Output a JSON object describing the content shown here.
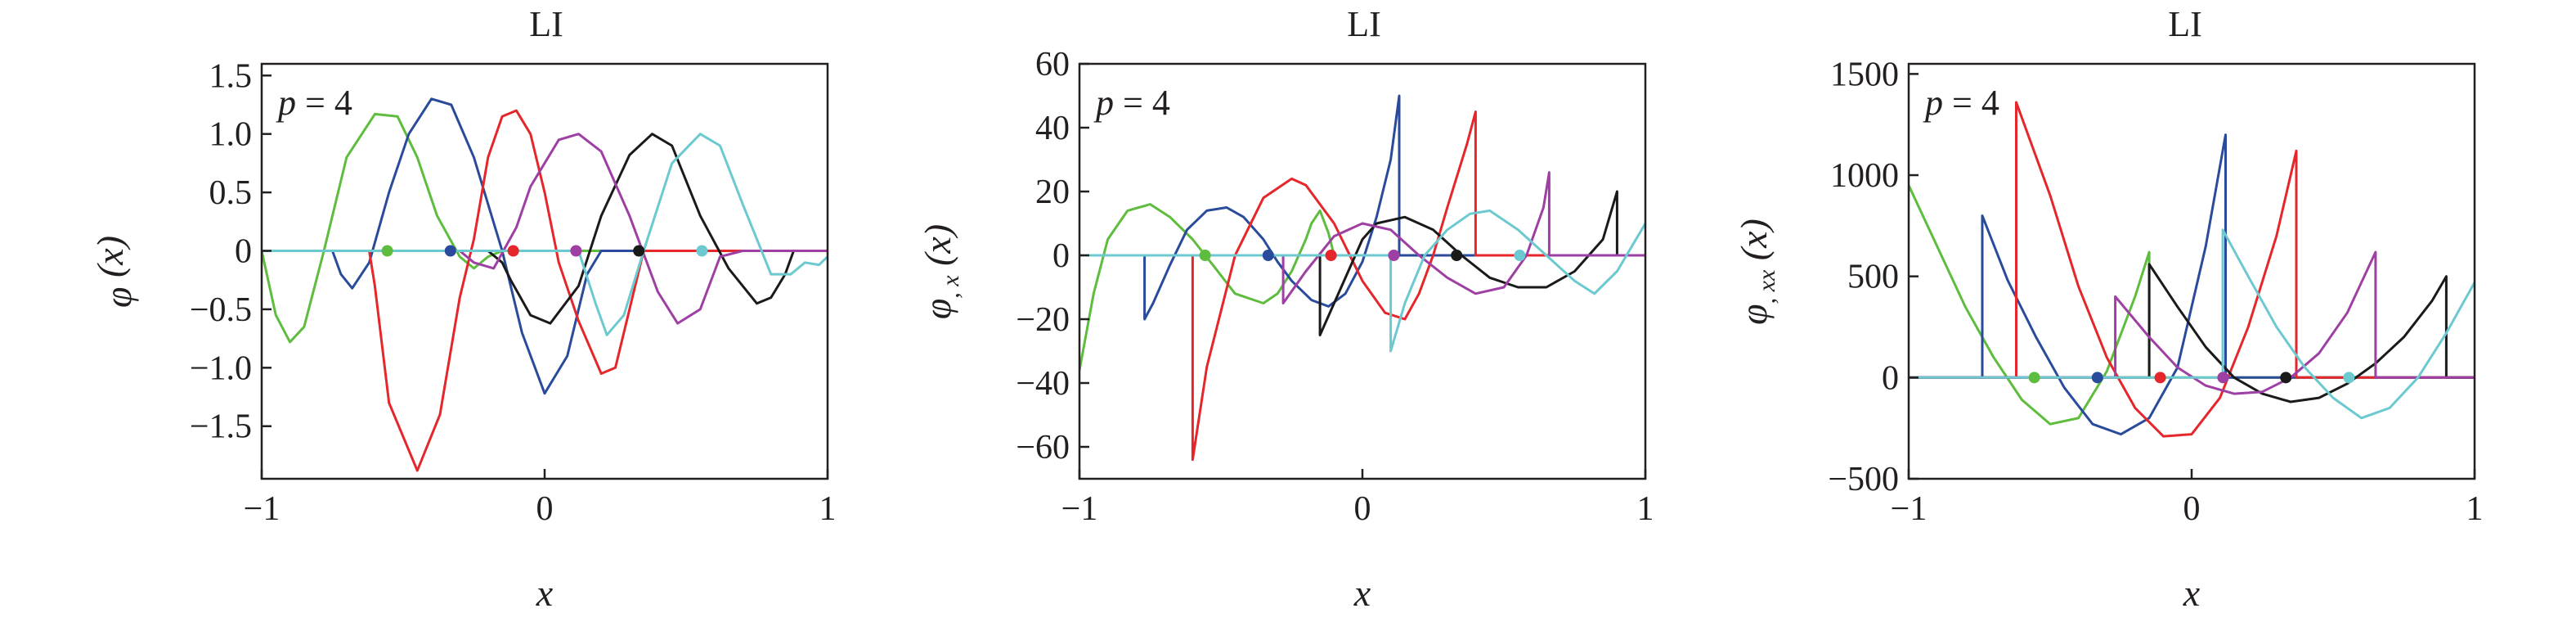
{
  "colors": {
    "green": "#5ebd3e",
    "blue": "#2a4b9b",
    "red": "#e5262b",
    "purple": "#9e3fa3",
    "black": "#1a1a1a",
    "cyan": "#6cc9cf"
  },
  "chart_data": [
    {
      "type": "line",
      "title": "LI",
      "annotation": {
        "p": "p",
        "eq": " = 4"
      },
      "xlabel": "x",
      "ylabel": {
        "sym": "φ",
        "sub": "",
        "arg": " (x)"
      },
      "xlim": [
        -1,
        1
      ],
      "ylim": [
        -1.95,
        1.6
      ],
      "xticks": [
        -1,
        0,
        1
      ],
      "xtick_labels": [
        "−1",
        "0",
        "1"
      ],
      "yticks": [
        -1.5,
        -1.0,
        -0.5,
        0,
        0.5,
        1.0,
        1.5
      ],
      "ytick_labels": [
        "−1.5",
        "−1.0",
        "−0.5",
        "0",
        "0.5",
        "1.0",
        "1.5"
      ],
      "nodes": [
        -0.556,
        -0.333,
        -0.111,
        0.111,
        0.333,
        0.556
      ],
      "series": [
        {
          "color": "green",
          "x": [
            -1,
            -0.95,
            -0.9,
            -0.85,
            -0.78,
            -0.7,
            -0.6,
            -0.52,
            -0.45,
            -0.38,
            -0.3,
            -0.25,
            -0.2,
            -0.15,
            -0.1,
            1
          ],
          "y": [
            0,
            -0.55,
            -0.78,
            -0.65,
            0,
            0.8,
            1.17,
            1.15,
            0.8,
            0.3,
            -0.05,
            -0.15,
            -0.05,
            0,
            0,
            0
          ]
        },
        {
          "color": "blue",
          "x": [
            -1,
            -0.75,
            -0.72,
            -0.68,
            -0.62,
            -0.55,
            -0.48,
            -0.4,
            -0.33,
            -0.25,
            -0.15,
            -0.08,
            0,
            0.08,
            0.15,
            0.2,
            1
          ],
          "y": [
            0,
            0,
            -0.2,
            -0.32,
            -0.1,
            0.5,
            1.0,
            1.3,
            1.25,
            0.8,
            0.0,
            -0.7,
            -1.22,
            -0.9,
            -0.2,
            0,
            0
          ]
        },
        {
          "color": "red",
          "x": [
            -1,
            -0.62,
            -0.6,
            -0.55,
            -0.45,
            -0.37,
            -0.3,
            -0.25,
            -0.2,
            -0.15,
            -0.1,
            -0.05,
            0,
            0.05,
            0.12,
            0.2,
            0.25,
            0.3,
            0.35,
            1
          ],
          "y": [
            0,
            0,
            -0.3,
            -1.3,
            -1.88,
            -1.4,
            -0.4,
            0.1,
            0.8,
            1.15,
            1.2,
            1.0,
            0.5,
            -0.1,
            -0.6,
            -1.05,
            -1.0,
            -0.5,
            0,
            0
          ]
        },
        {
          "color": "black",
          "x": [
            -1,
            -0.2,
            -0.15,
            -0.12,
            -0.05,
            0.02,
            0.12,
            0.2,
            0.3,
            0.38,
            0.45,
            0.55,
            0.65,
            0.75,
            0.8,
            0.85,
            0.88,
            1
          ],
          "y": [
            0,
            0,
            -0.1,
            -0.25,
            -0.55,
            -0.62,
            -0.3,
            0.3,
            0.82,
            1.0,
            0.9,
            0.3,
            -0.15,
            -0.45,
            -0.4,
            -0.2,
            0,
            0
          ]
        },
        {
          "color": "purple",
          "x": [
            -1,
            -0.3,
            -0.25,
            -0.18,
            -0.1,
            -0.05,
            0.05,
            0.12,
            0.2,
            0.3,
            0.4,
            0.47,
            0.55,
            0.62,
            0.7,
            1
          ],
          "y": [
            0,
            0,
            -0.1,
            -0.15,
            0.2,
            0.55,
            0.95,
            1.0,
            0.85,
            0.3,
            -0.35,
            -0.62,
            -0.5,
            -0.05,
            0,
            0
          ]
        },
        {
          "color": "cyan",
          "x": [
            -1,
            0.12,
            0.18,
            0.22,
            0.28,
            0.35,
            0.45,
            0.55,
            0.62,
            0.7,
            0.8,
            0.87,
            0.92,
            0.97,
            1
          ],
          "y": [
            0,
            0,
            -0.45,
            -0.72,
            -0.55,
            0.0,
            0.75,
            1.0,
            0.9,
            0.4,
            -0.2,
            -0.2,
            -0.1,
            -0.12,
            -0.05
          ]
        }
      ]
    },
    {
      "type": "line",
      "title": "LI",
      "annotation": {
        "p": "p",
        "eq": " = 4"
      },
      "xlabel": "x",
      "ylabel": {
        "sym": "φ",
        "sub": ", x",
        "arg": " (x)"
      },
      "xlim": [
        -1,
        1
      ],
      "ylim": [
        -70,
        60
      ],
      "xticks": [
        -1,
        0,
        1
      ],
      "xtick_labels": [
        "−1",
        "0",
        "1"
      ],
      "yticks": [
        -60,
        -40,
        -20,
        0,
        20,
        40,
        60
      ],
      "ytick_labels": [
        "−60",
        "−40",
        "−20",
        "0",
        "20",
        "40",
        "60"
      ],
      "nodes": [
        -0.556,
        -0.333,
        -0.111,
        0.111,
        0.333,
        0.556
      ],
      "series": [
        {
          "color": "green",
          "x": [
            -1,
            -0.95,
            -0.9,
            -0.83,
            -0.75,
            -0.68,
            -0.6,
            -0.52,
            -0.45,
            -0.35,
            -0.3,
            -0.25,
            -0.2,
            -0.18,
            -0.15,
            -0.12,
            -0.1,
            1
          ],
          "y": [
            -36,
            -12,
            5,
            14,
            16,
            12,
            5,
            -4,
            -12,
            -15,
            -12,
            -5,
            5,
            10,
            14,
            7,
            0,
            0
          ]
        },
        {
          "color": "blue",
          "x": [
            -1,
            -0.77,
            -0.77,
            -0.74,
            -0.68,
            -0.62,
            -0.55,
            -0.48,
            -0.42,
            -0.35,
            -0.3,
            -0.25,
            -0.18,
            -0.12,
            -0.06,
            0,
            0.05,
            0.1,
            0.13,
            0.13,
            1
          ],
          "y": [
            0,
            0,
            -20,
            -15,
            -3,
            8,
            14,
            15,
            12,
            5,
            -2,
            -8,
            -14,
            -16,
            -12,
            -2,
            12,
            30,
            50,
            0,
            0
          ]
        },
        {
          "color": "red",
          "x": [
            -1,
            -0.6,
            -0.6,
            -0.55,
            -0.45,
            -0.35,
            -0.25,
            -0.2,
            -0.1,
            0,
            0.08,
            0.15,
            0.2,
            0.25,
            0.3,
            0.37,
            0.4,
            0.4,
            1
          ],
          "y": [
            0,
            0,
            -64,
            -35,
            0,
            18,
            24,
            22,
            10,
            -8,
            -18,
            -20,
            -12,
            0,
            15,
            35,
            45,
            0,
            0
          ]
        },
        {
          "color": "black",
          "x": [
            -1,
            -0.15,
            -0.15,
            -0.1,
            -0.05,
            0,
            0.05,
            0.15,
            0.25,
            0.35,
            0.45,
            0.55,
            0.65,
            0.75,
            0.85,
            0.9,
            0.9,
            1
          ],
          "y": [
            0,
            0,
            -25,
            -15,
            -5,
            5,
            10,
            12,
            8,
            0,
            -7,
            -10,
            -10,
            -5,
            5,
            20,
            0,
            0
          ]
        },
        {
          "color": "purple",
          "x": [
            -1,
            -0.28,
            -0.28,
            -0.2,
            -0.1,
            0,
            0.1,
            0.2,
            0.3,
            0.4,
            0.5,
            0.58,
            0.64,
            0.66,
            0.66,
            1
          ],
          "y": [
            0,
            0,
            -15,
            -5,
            6,
            10,
            8,
            0,
            -7,
            -12,
            -10,
            0,
            15,
            26,
            0,
            0
          ]
        },
        {
          "color": "cyan",
          "x": [
            -1,
            0.1,
            0.1,
            0.15,
            0.22,
            0.3,
            0.38,
            0.45,
            0.55,
            0.65,
            0.75,
            0.82,
            0.9,
            1
          ],
          "y": [
            0,
            0,
            -30,
            -15,
            0,
            8,
            13,
            14,
            8,
            0,
            -8,
            -12,
            -5,
            10
          ]
        }
      ]
    },
    {
      "type": "line",
      "title": "LI",
      "annotation": {
        "p": "p",
        "eq": " = 4"
      },
      "xlabel": "x",
      "ylabel": {
        "sym": "φ",
        "sub": ", xx",
        "arg": " (x)"
      },
      "xlim": [
        -1,
        1
      ],
      "ylim": [
        -500,
        1550
      ],
      "xticks": [
        -1,
        0,
        1
      ],
      "xtick_labels": [
        "−1",
        "0",
        "1"
      ],
      "yticks": [
        -500,
        0,
        500,
        1000,
        1500
      ],
      "ytick_labels": [
        "−500",
        "0",
        "500",
        "1000",
        "1500"
      ],
      "nodes": [
        -0.556,
        -0.333,
        -0.111,
        0.111,
        0.333,
        0.556
      ],
      "series": [
        {
          "color": "green",
          "x": [
            -1,
            -0.9,
            -0.8,
            -0.7,
            -0.6,
            -0.5,
            -0.4,
            -0.3,
            -0.2,
            -0.15,
            -0.15,
            1
          ],
          "y": [
            950,
            650,
            350,
            100,
            -110,
            -230,
            -200,
            30,
            400,
            620,
            0,
            0
          ]
        },
        {
          "color": "blue",
          "x": [
            -1,
            -0.74,
            -0.74,
            -0.65,
            -0.55,
            -0.45,
            -0.35,
            -0.25,
            -0.15,
            -0.05,
            0.05,
            0.12,
            0.12,
            1
          ],
          "y": [
            0,
            0,
            800,
            480,
            200,
            -50,
            -230,
            -280,
            -200,
            50,
            650,
            1200,
            0,
            0
          ]
        },
        {
          "color": "red",
          "x": [
            -1,
            -0.62,
            -0.62,
            -0.5,
            -0.4,
            -0.3,
            -0.2,
            -0.1,
            0,
            0.1,
            0.2,
            0.3,
            0.37,
            0.37,
            1
          ],
          "y": [
            0,
            0,
            1360,
            900,
            450,
            100,
            -150,
            -290,
            -280,
            -100,
            250,
            700,
            1120,
            0,
            0
          ]
        },
        {
          "color": "black",
          "x": [
            -1,
            -0.15,
            -0.15,
            -0.05,
            0.05,
            0.15,
            0.25,
            0.35,
            0.45,
            0.55,
            0.65,
            0.75,
            0.85,
            0.9,
            0.9,
            1
          ],
          "y": [
            0,
            0,
            560,
            350,
            150,
            0,
            -80,
            -120,
            -100,
            -30,
            70,
            200,
            380,
            500,
            0,
            0
          ]
        },
        {
          "color": "purple",
          "x": [
            -1,
            -0.27,
            -0.27,
            -0.15,
            -0.05,
            0.05,
            0.15,
            0.25,
            0.35,
            0.45,
            0.55,
            0.65,
            0.65,
            1
          ],
          "y": [
            0,
            0,
            400,
            200,
            50,
            -40,
            -80,
            -70,
            0,
            120,
            320,
            620,
            0,
            0
          ]
        },
        {
          "color": "cyan",
          "x": [
            -1,
            0.11,
            0.11,
            0.2,
            0.3,
            0.4,
            0.5,
            0.6,
            0.7,
            0.8,
            0.9,
            1
          ],
          "y": [
            0,
            0,
            730,
            500,
            250,
            50,
            -100,
            -200,
            -150,
            0,
            220,
            470
          ]
        }
      ]
    }
  ]
}
